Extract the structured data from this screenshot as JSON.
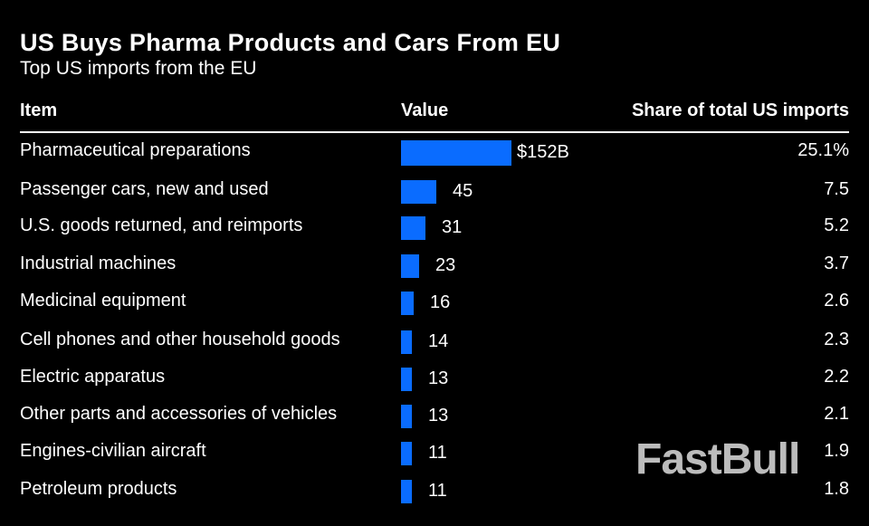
{
  "watermark": "FastBull",
  "chart_data": {
    "type": "table",
    "title": "US Buys Pharma Products and Cars From EU",
    "subtitle": "Top US imports from the EU",
    "columns": [
      "Item",
      "Value",
      "Share of total US imports"
    ],
    "bar_color": "#0a6cff",
    "rows": [
      {
        "item": "Pharmaceutical preparations",
        "value": 152,
        "value_label": "$152B",
        "share": "25.1%"
      },
      {
        "item": "Passenger cars, new and used",
        "value": 45,
        "value_label": "45",
        "share": "7.5"
      },
      {
        "item": "U.S. goods returned, and reimports",
        "value": 31,
        "value_label": "31",
        "share": "5.2"
      },
      {
        "item": "Industrial machines",
        "value": 23,
        "value_label": "23",
        "share": "3.7"
      },
      {
        "item": "Medicinal equipment",
        "value": 16,
        "value_label": "16",
        "share": "2.6"
      },
      {
        "item": "Cell phones and other household goods",
        "value": 14,
        "value_label": "14",
        "share": "2.3"
      },
      {
        "item": "Electric apparatus",
        "value": 13,
        "value_label": "13",
        "share": "2.2"
      },
      {
        "item": "Other parts and accessories of vehicles",
        "value": 13,
        "value_label": "13",
        "share": "2.1"
      },
      {
        "item": "Engines-civilian aircraft",
        "value": 11,
        "value_label": "11",
        "share": "1.9"
      },
      {
        "item": "Petroleum products",
        "value": 11,
        "value_label": "11",
        "share": "1.8"
      }
    ]
  }
}
